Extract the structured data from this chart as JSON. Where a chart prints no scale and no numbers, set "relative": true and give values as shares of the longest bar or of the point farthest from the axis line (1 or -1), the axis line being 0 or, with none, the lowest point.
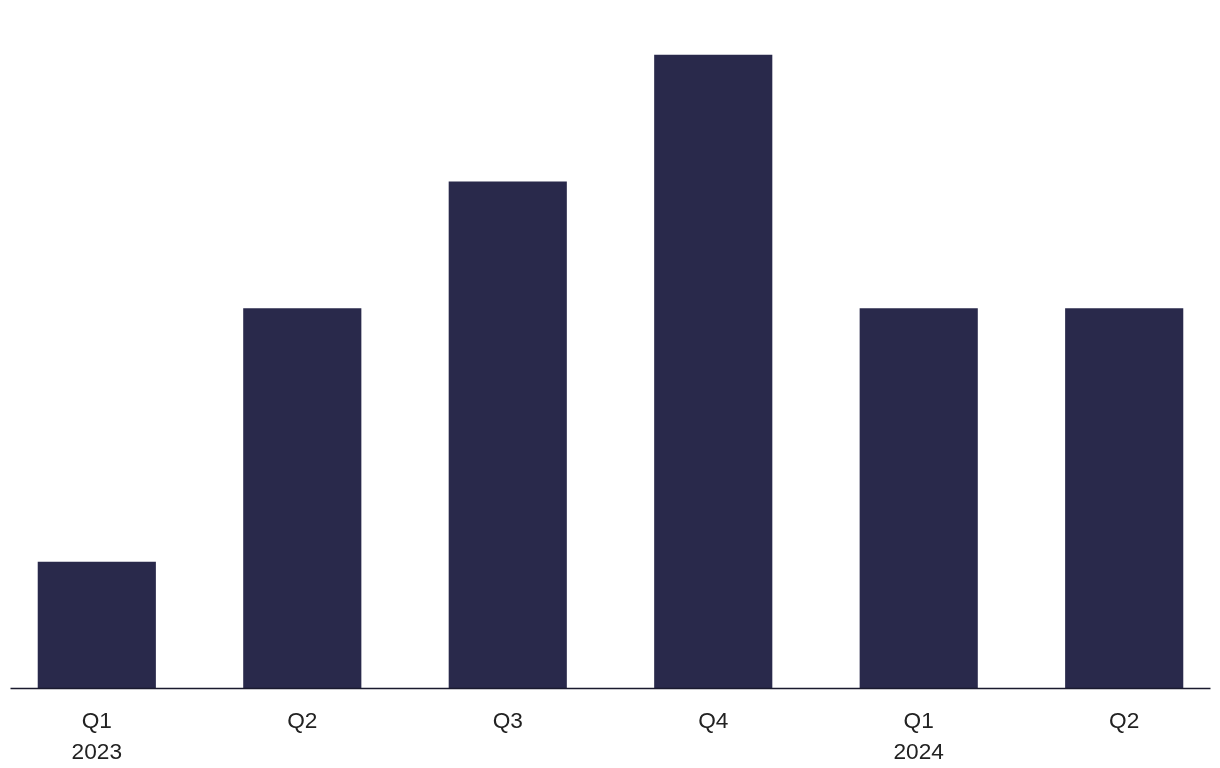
{
  "chart_data": {
    "type": "bar",
    "relative": true,
    "categories": [
      "Q1\n2023",
      "Q2",
      "Q3",
      "Q4",
      "Q1\n2024",
      "Q2"
    ],
    "values": [
      0.2,
      0.6,
      0.8,
      1,
      0.6,
      0.6
    ],
    "color": "#29294b",
    "grid": false
  }
}
